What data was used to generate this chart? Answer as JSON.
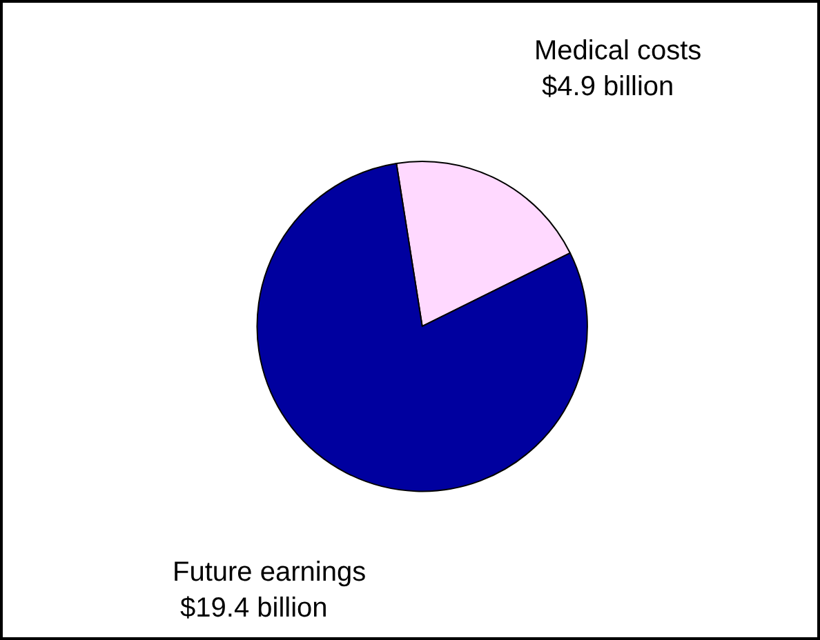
{
  "chart_data": {
    "type": "pie",
    "categories": [
      "Medical costs",
      "Future earnings"
    ],
    "values": [
      4.9,
      19.4
    ],
    "value_labels": [
      "$4.9 billion",
      "$19.4 billion"
    ],
    "colors": [
      "#ffd9ff",
      "#00009f"
    ],
    "legend": false
  }
}
